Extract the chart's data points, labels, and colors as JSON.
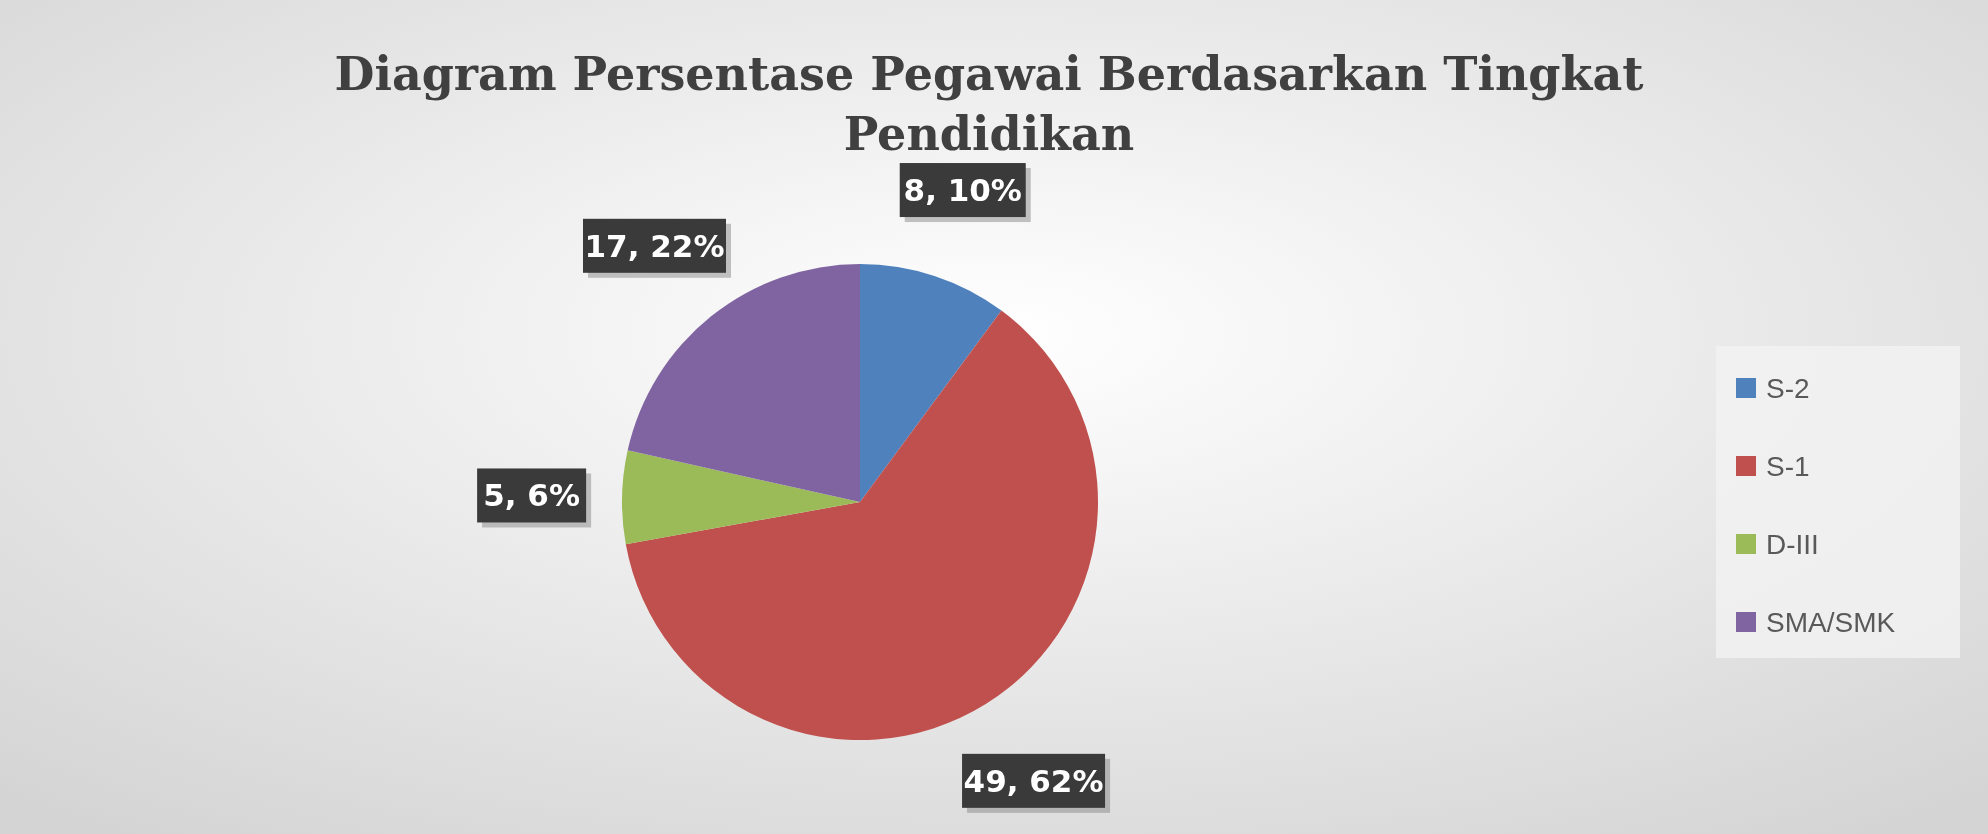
{
  "chart_data": {
    "type": "pie",
    "title": "Diagram Persentase Pegawai Berdasarkan Tingkat Pendidikan",
    "categories": [
      "S-2",
      "S-1",
      "D-III",
      "SMA/SMK"
    ],
    "values": [
      8,
      49,
      5,
      17
    ],
    "colors": [
      "#4f81bd",
      "#c0504d",
      "#9bbb59",
      "#8064a2"
    ],
    "value_labels": [
      "8, 10%",
      "49, 62%",
      "5, 6%",
      "17, 22%"
    ],
    "legend": "right"
  }
}
